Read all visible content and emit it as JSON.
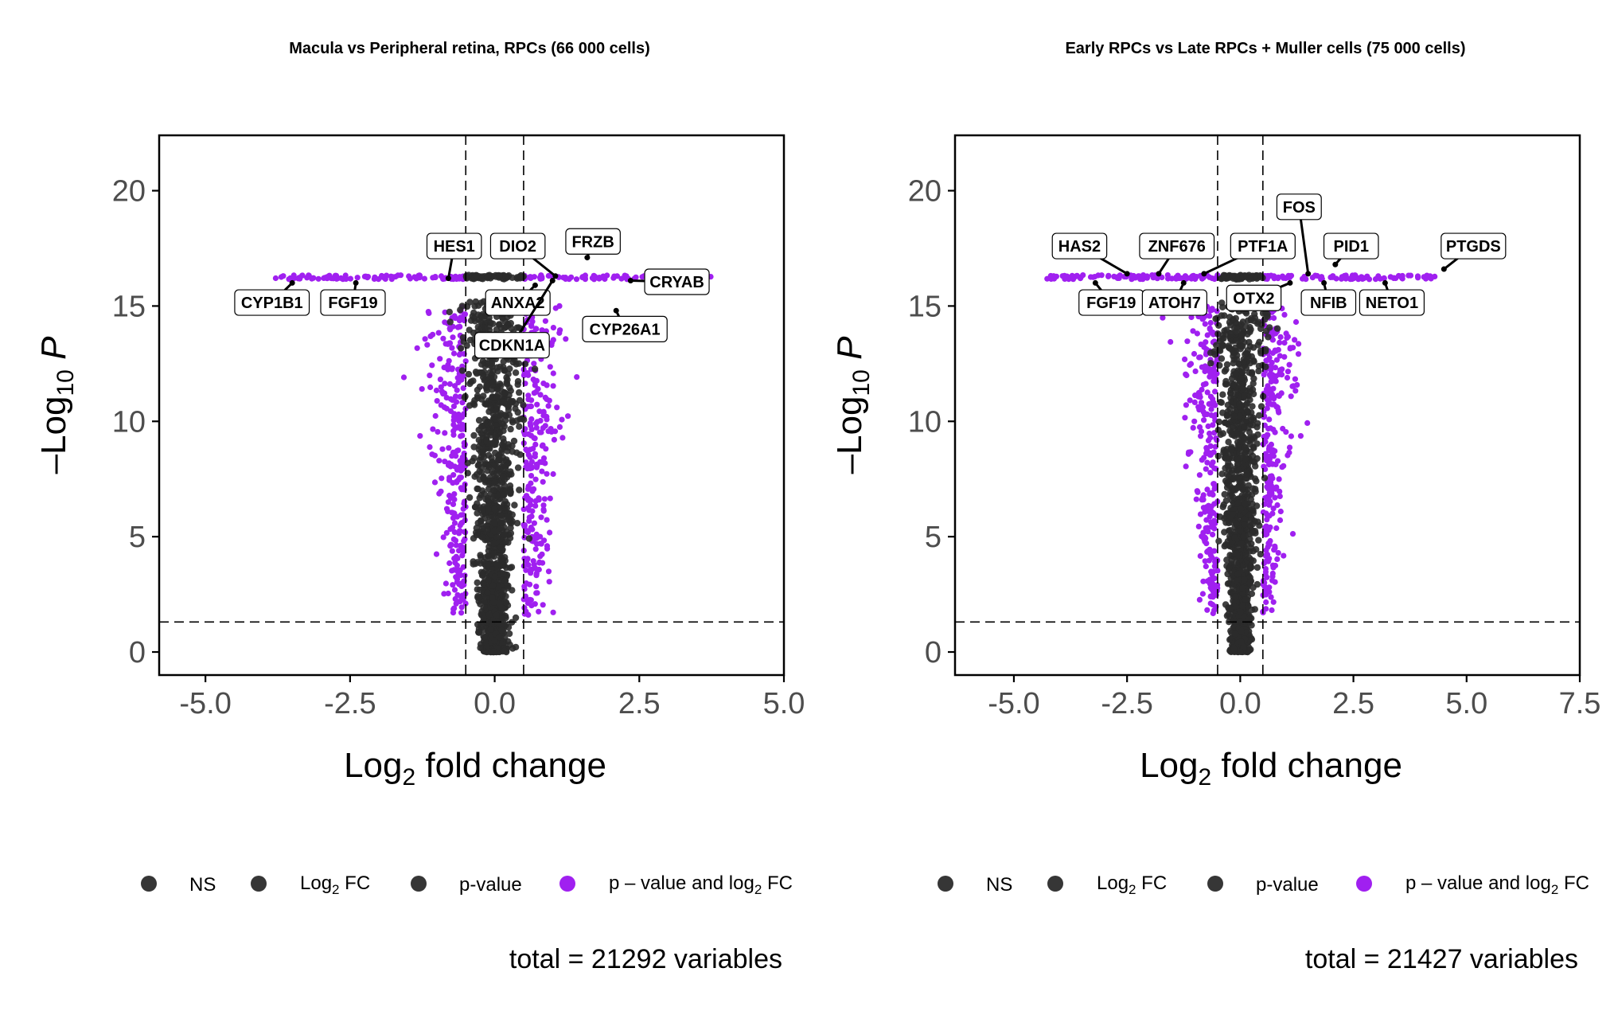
{
  "colors": {
    "ns": "#2b2b2b",
    "log2fc": "#2b2b2b",
    "pvalue": "#2b2b2b",
    "both": "#a020f0",
    "guide": "#000000"
  },
  "legend": {
    "ns": "NS",
    "log2fc_prefix": "Log",
    "log2fc_sub": "2",
    "log2fc_suffix": " FC",
    "pvalue": "p-value",
    "both_prefix": "p – value and log",
    "both_sub": "2",
    "both_suffix": " FC"
  },
  "axis_titles": {
    "x_prefix": "Log",
    "x_sub": "2",
    "x_suffix": " fold change",
    "y_prefix": "–Log",
    "y_sub": "10",
    "y_suffix": " P"
  },
  "chart_data": [
    {
      "type": "scatter",
      "title": "Macula vs Peripheral retina, RPCs (66 000 cells)",
      "caption": "total = 21292 variables",
      "xlim": [
        -5.8,
        5.0
      ],
      "ylim": [
        -1.0,
        22.4
      ],
      "x_ticks": [
        -5.0,
        -2.5,
        0.0,
        2.5,
        5.0
      ],
      "x_tick_labels": [
        "-5.0",
        "-2.5",
        "0.0",
        "2.5",
        "5.0"
      ],
      "y_ticks": [
        0,
        5,
        10,
        15,
        20
      ],
      "y_tick_labels": [
        "0",
        "5",
        "10",
        "15",
        "20"
      ],
      "fc_cutoff": 0.5,
      "p_cutoff_log": 1.3,
      "labels": [
        {
          "gene": "HES1",
          "x": -0.8,
          "y": 16.2,
          "lx": -0.7,
          "ly": 17.6
        },
        {
          "gene": "CYP1B1",
          "x": -3.5,
          "y": 16.0,
          "lx": -3.85,
          "ly": 15.15
        },
        {
          "gene": "FGF19",
          "x": -2.4,
          "y": 16.0,
          "lx": -2.45,
          "ly": 15.15
        },
        {
          "gene": "DIO2",
          "x": 1.05,
          "y": 16.3,
          "lx": 0.4,
          "ly": 17.6
        },
        {
          "gene": "FRZB",
          "x": 1.6,
          "y": 17.1,
          "lx": 1.7,
          "ly": 17.8
        },
        {
          "gene": "CRYAB",
          "x": 2.35,
          "y": 16.1,
          "lx": 3.15,
          "ly": 16.05
        },
        {
          "gene": "ANXA2",
          "x": 0.7,
          "y": 15.9,
          "lx": 0.4,
          "ly": 15.15
        },
        {
          "gene": "CYP26A1",
          "x": 2.1,
          "y": 14.8,
          "lx": 2.25,
          "ly": 14.0
        },
        {
          "gene": "CDKN1A",
          "x": 1.0,
          "y": 16.1,
          "lx": 0.3,
          "ly": 13.3
        }
      ]
    },
    {
      "type": "scatter",
      "title": "Early RPCs vs Late RPCs + Muller cells (75 000 cells)",
      "caption": "total = 21427 variables",
      "xlim": [
        -6.3,
        7.5
      ],
      "ylim": [
        -1.0,
        22.4
      ],
      "x_ticks": [
        -5.0,
        -2.5,
        0.0,
        2.5,
        5.0,
        7.5
      ],
      "x_tick_labels": [
        "-5.0",
        "-2.5",
        "0.0",
        "2.5",
        "5.0",
        "7.5"
      ],
      "y_ticks": [
        0,
        5,
        10,
        15,
        20
      ],
      "y_tick_labels": [
        "0",
        "5",
        "10",
        "15",
        "20"
      ],
      "fc_cutoff": 0.5,
      "p_cutoff_log": 1.3,
      "labels": [
        {
          "gene": "FOS",
          "x": 1.5,
          "y": 16.4,
          "lx": 1.3,
          "ly": 19.3
        },
        {
          "gene": "HAS2",
          "x": -2.5,
          "y": 16.4,
          "lx": -3.55,
          "ly": 17.6
        },
        {
          "gene": "ZNF676",
          "x": -1.8,
          "y": 16.4,
          "lx": -1.4,
          "ly": 17.6
        },
        {
          "gene": "PTF1A",
          "x": -0.8,
          "y": 16.4,
          "lx": 0.5,
          "ly": 17.6
        },
        {
          "gene": "PID1",
          "x": 2.1,
          "y": 16.8,
          "lx": 2.45,
          "ly": 17.6
        },
        {
          "gene": "PTGDS",
          "x": 4.5,
          "y": 16.6,
          "lx": 5.15,
          "ly": 17.6
        },
        {
          "gene": "FGF19",
          "x": -3.2,
          "y": 16.0,
          "lx": -2.85,
          "ly": 15.15
        },
        {
          "gene": "ATOH7",
          "x": -1.25,
          "y": 16.0,
          "lx": -1.45,
          "ly": 15.15
        },
        {
          "gene": "OTX2",
          "x": 1.1,
          "y": 16.0,
          "lx": 0.3,
          "ly": 15.35
        },
        {
          "gene": "NFIB",
          "x": 1.85,
          "y": 16.0,
          "lx": 1.95,
          "ly": 15.15
        },
        {
          "gene": "NETO1",
          "x": 3.2,
          "y": 16.0,
          "lx": 3.35,
          "ly": 15.15
        }
      ]
    }
  ]
}
